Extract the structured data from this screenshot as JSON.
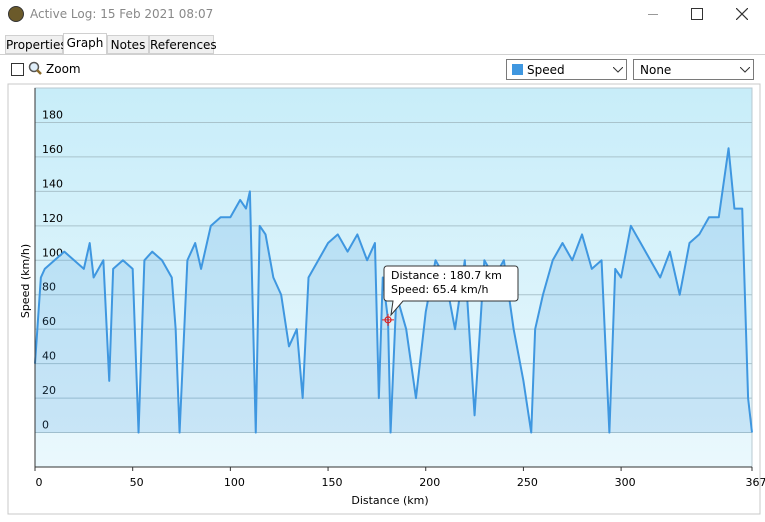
{
  "window": {
    "title": "Active Log: 15 Feb 2021 08:07"
  },
  "tabs": [
    "Properties",
    "Graph",
    "Notes",
    "References"
  ],
  "toolbar": {
    "zoom": "Zoom",
    "primary": "Speed",
    "secondary": "None"
  },
  "tooltip": [
    "Distance : 180.7 km",
    "Speed: 65.4 km/h"
  ],
  "chart_data": {
    "type": "line",
    "x_label": "Distance  (km)",
    "y_label": "Speed (km/h)",
    "xlim": [
      0,
      367
    ],
    "xticks": [
      0,
      50,
      100,
      150,
      200,
      250,
      300,
      367
    ],
    "ylim": [
      -20,
      200
    ],
    "yticks": [
      0,
      20,
      40,
      60,
      80,
      100,
      120,
      140,
      160,
      180
    ],
    "grid": true,
    "cursor": {
      "x": 180.7,
      "y": 65.4
    },
    "series": [
      {
        "name": "Speed",
        "color": "#3f97e0",
        "x": [
          0,
          3,
          5,
          10,
          15,
          20,
          25,
          28,
          30,
          35,
          38,
          40,
          45,
          50,
          53,
          56,
          60,
          65,
          70,
          72,
          74,
          76,
          78,
          82,
          85,
          90,
          95,
          100,
          105,
          108,
          110,
          113,
          115,
          118,
          122,
          126,
          130,
          134,
          137,
          140,
          145,
          150,
          155,
          160,
          165,
          170,
          174,
          176,
          178,
          180.7,
          182,
          185,
          190,
          195,
          200,
          205,
          210,
          215,
          220,
          225,
          230,
          235,
          240,
          245,
          250,
          254,
          256,
          260,
          265,
          270,
          275,
          280,
          285,
          290,
          294,
          297,
          300,
          305,
          310,
          315,
          320,
          325,
          330,
          335,
          340,
          345,
          350,
          355,
          358,
          362,
          365,
          367
        ],
        "values": [
          40,
          90,
          95,
          100,
          105,
          100,
          95,
          110,
          90,
          100,
          30,
          95,
          100,
          95,
          0,
          100,
          105,
          100,
          90,
          60,
          0,
          50,
          100,
          110,
          95,
          120,
          125,
          125,
          135,
          130,
          140,
          0,
          120,
          115,
          90,
          80,
          50,
          60,
          20,
          90,
          100,
          110,
          115,
          105,
          115,
          100,
          110,
          20,
          90,
          65.4,
          0,
          80,
          60,
          20,
          70,
          100,
          90,
          60,
          100,
          10,
          100,
          90,
          100,
          60,
          30,
          0,
          60,
          80,
          100,
          110,
          100,
          115,
          95,
          100,
          0,
          95,
          90,
          120,
          110,
          100,
          90,
          105,
          80,
          110,
          115,
          125,
          125,
          165,
          130,
          130,
          20,
          0
        ]
      }
    ]
  }
}
